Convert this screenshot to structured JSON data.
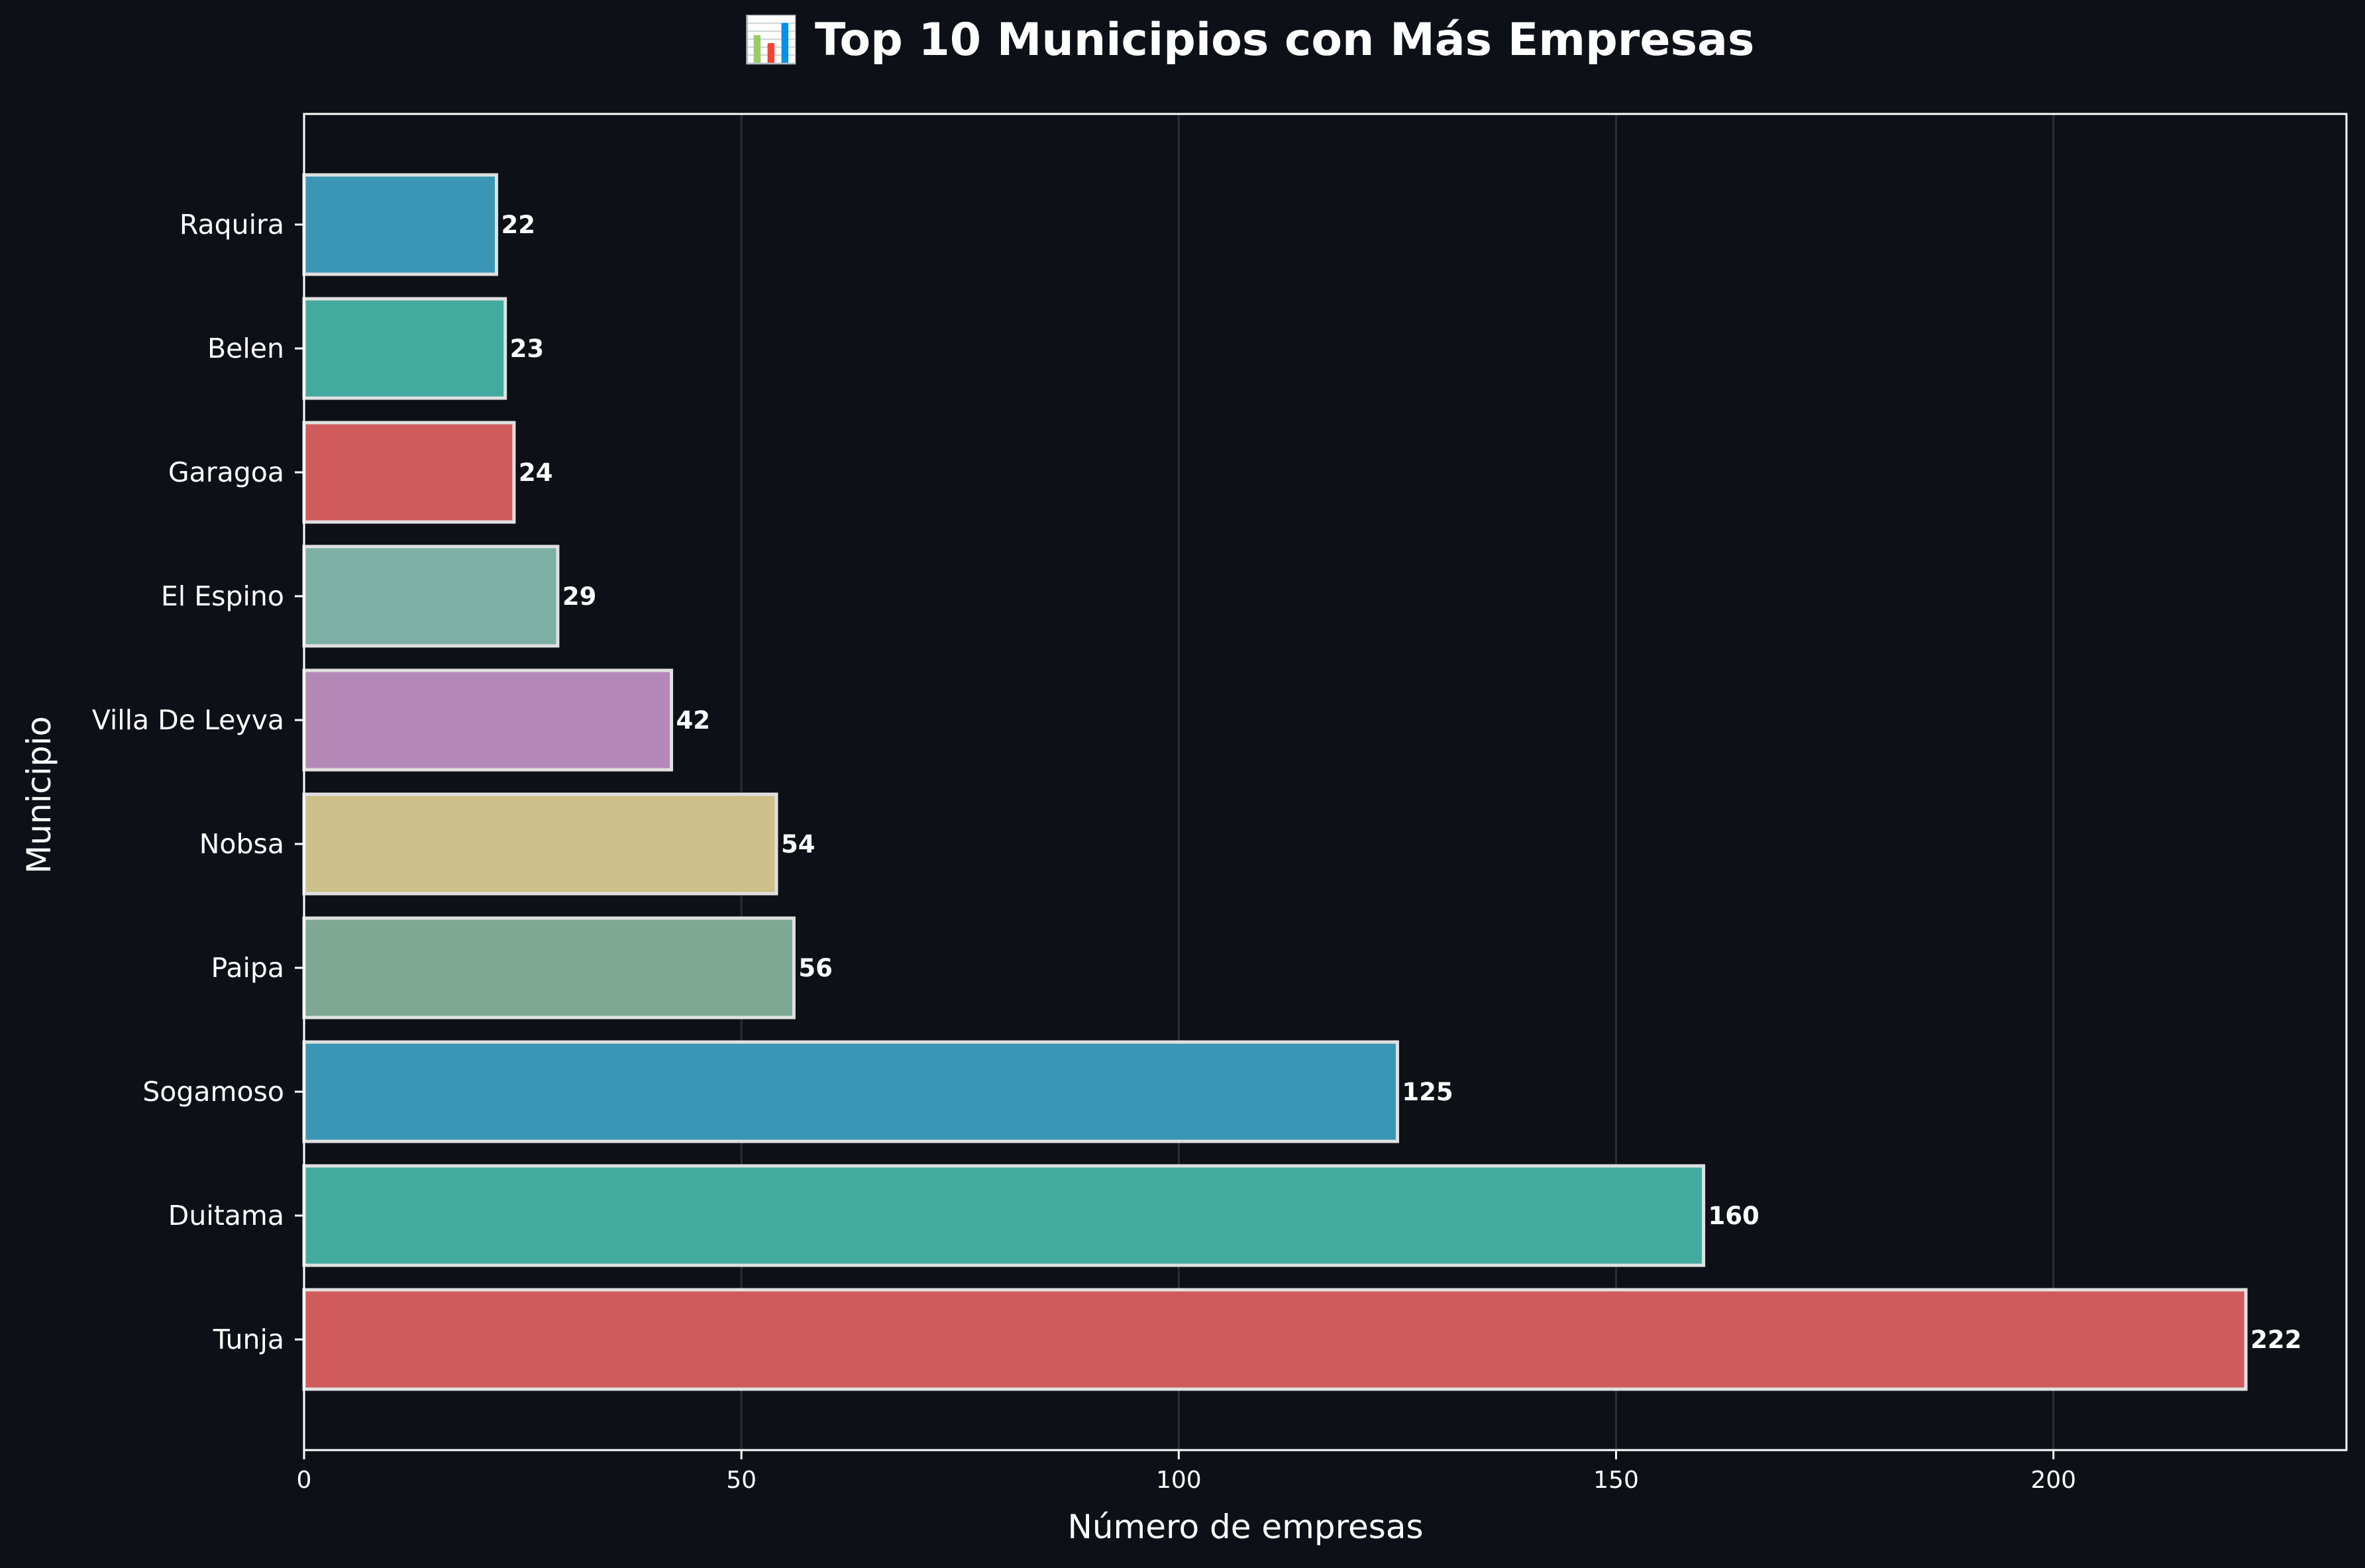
{
  "chart_data": {
    "type": "bar",
    "orientation": "horizontal",
    "title": "📊 Top 10 Municipios con Más Empresas",
    "xlabel": "Número de empresas",
    "ylabel": "Municipio",
    "categories": [
      "Raquira",
      "Belen",
      "Garagoa",
      "El Espino",
      "Villa De Leyva",
      "Nobsa",
      "Paipa",
      "Sogamoso",
      "Duitama",
      "Tunja"
    ],
    "values": [
      22,
      23,
      24,
      29,
      42,
      54,
      56,
      125,
      160,
      222
    ],
    "value_labels": [
      "22",
      "23",
      "24",
      "29",
      "42",
      "54",
      "56",
      "125",
      "160",
      "222"
    ],
    "bar_colors": [
      "#3a96b4",
      "#43aaa0",
      "#d05a5c",
      "#7cb0a4",
      "#b489b8",
      "#cdc08a",
      "#7ea894",
      "#3a96b4",
      "#43aaa0",
      "#d05a5c"
    ],
    "xlim": [
      0,
      233.5
    ],
    "xticks": [
      0,
      50,
      100,
      150,
      200
    ],
    "xtick_labels": [
      "0",
      "50",
      "100",
      "150",
      "200"
    ],
    "grid": "vertical",
    "legend": "none",
    "colors": {
      "background": "#0d1117",
      "text": "#ffffff",
      "axes": "#ffffff",
      "grid": "#2a2f36",
      "bar_edge": "#e0e0e0"
    }
  }
}
